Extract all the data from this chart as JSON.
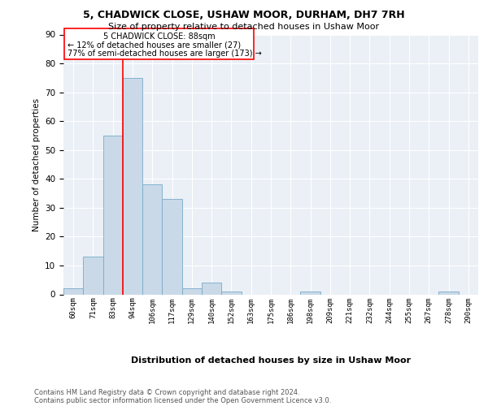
{
  "title": "5, CHADWICK CLOSE, USHAW MOOR, DURHAM, DH7 7RH",
  "subtitle": "Size of property relative to detached houses in Ushaw Moor",
  "xlabel": "Distribution of detached houses by size in Ushaw Moor",
  "ylabel": "Number of detached properties",
  "bin_labels": [
    "60sqm",
    "71sqm",
    "83sqm",
    "94sqm",
    "106sqm",
    "117sqm",
    "129sqm",
    "140sqm",
    "152sqm",
    "163sqm",
    "175sqm",
    "186sqm",
    "198sqm",
    "209sqm",
    "221sqm",
    "232sqm",
    "244sqm",
    "255sqm",
    "267sqm",
    "278sqm",
    "290sqm"
  ],
  "bar_values": [
    2,
    13,
    55,
    75,
    38,
    33,
    2,
    4,
    1,
    0,
    0,
    0,
    1,
    0,
    0,
    0,
    0,
    0,
    0,
    1,
    0
  ],
  "bar_color": "#c9d9e8",
  "bar_edge_color": "#7aaac8",
  "red_line_bin_index": 2.5,
  "annotation_title": "5 CHADWICK CLOSE: 88sqm",
  "annotation_line1": "← 12% of detached houses are smaller (27)",
  "annotation_line2": "77% of semi-detached houses are larger (173) →",
  "ylim": [
    0,
    90
  ],
  "yticks": [
    0,
    10,
    20,
    30,
    40,
    50,
    60,
    70,
    80,
    90
  ],
  "footnote1": "Contains HM Land Registry data © Crown copyright and database right 2024.",
  "footnote2": "Contains public sector information licensed under the Open Government Licence v3.0."
}
